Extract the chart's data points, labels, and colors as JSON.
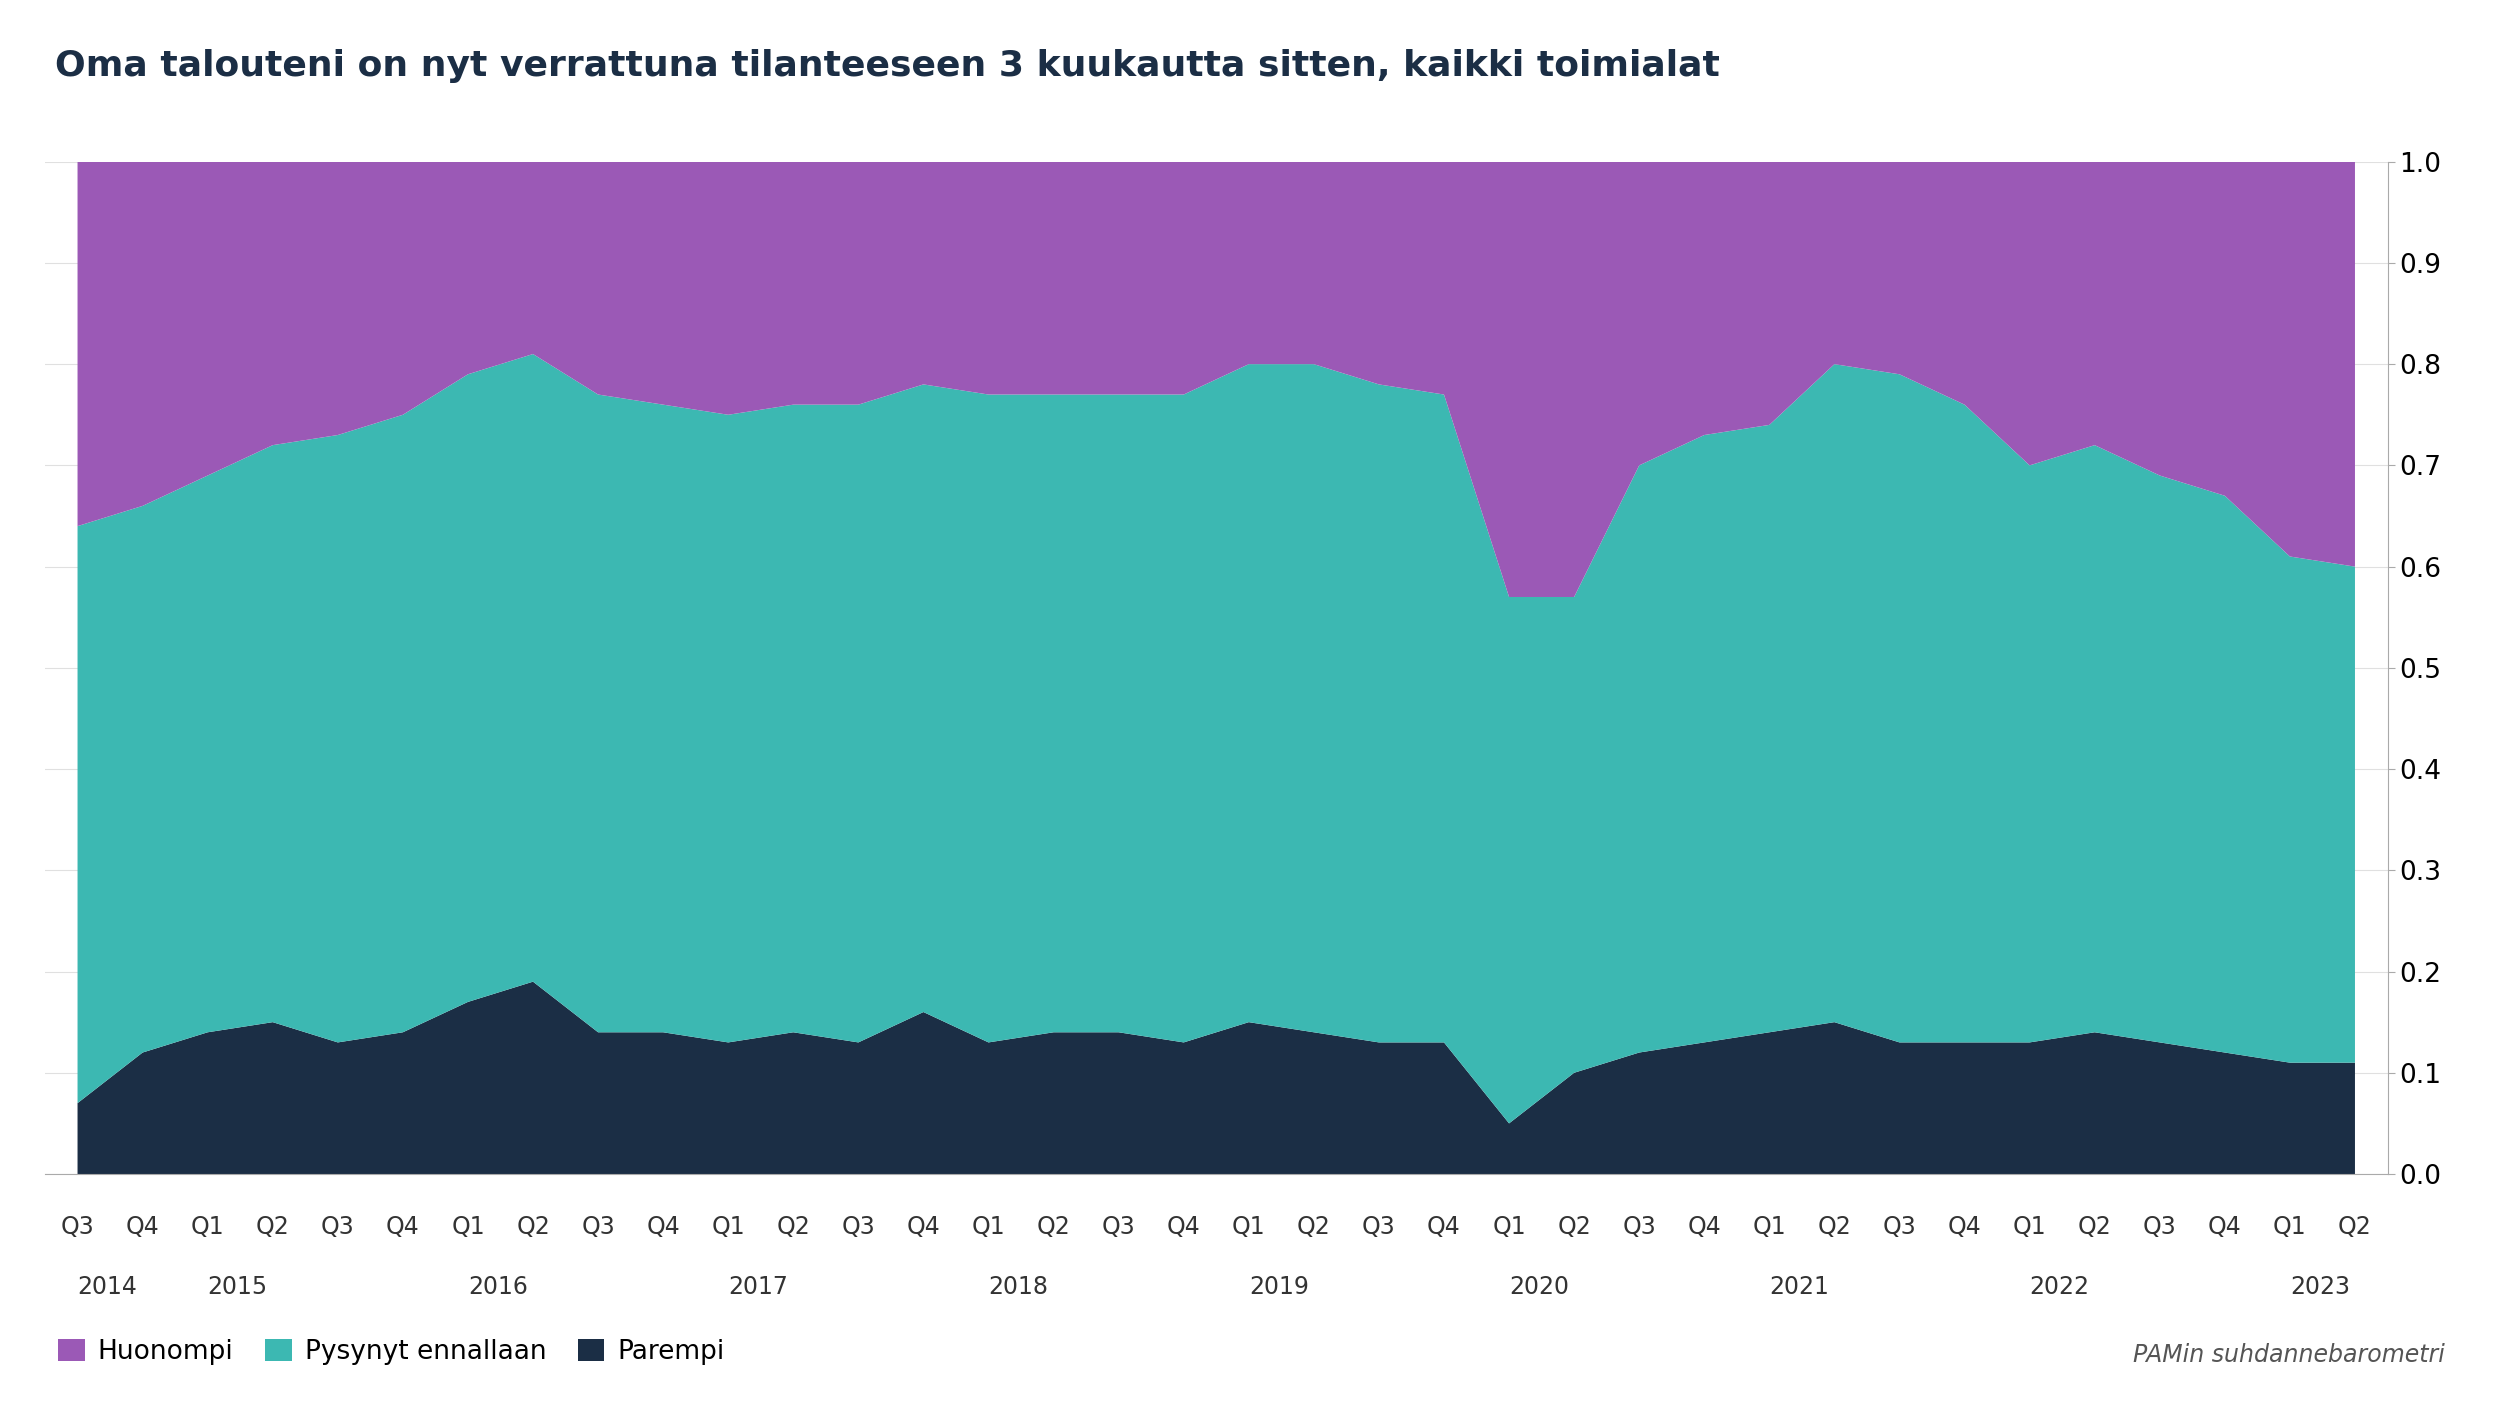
{
  "title": "Oma talouteni on nyt verrattuna tilanteeseen 3 kuukautta sitten, kaikki toimialat",
  "source": "PAMin suhdannebarometri",
  "colors": {
    "Huonompi": "#9b59b6",
    "Pysynyt ennallaan": "#3cb8b2",
    "Parempi": "#1b2e45"
  },
  "background_color": "#ffffff",
  "tick_labels": [
    "Q3",
    "Q4",
    "Q1",
    "Q2",
    "Q3",
    "Q4",
    "Q1",
    "Q2",
    "Q3",
    "Q4",
    "Q1",
    "Q2",
    "Q3",
    "Q4",
    "Q1",
    "Q2",
    "Q3",
    "Q4",
    "Q1",
    "Q2",
    "Q3",
    "Q4",
    "Q1",
    "Q2",
    "Q3",
    "Q4",
    "Q1",
    "Q2",
    "Q3",
    "Q4",
    "Q1",
    "Q2",
    "Q3",
    "Q4",
    "Q1",
    "Q2"
  ],
  "year_labels": [
    "2014",
    "2015",
    "2016",
    "2017",
    "2018",
    "2019",
    "2020",
    "2021",
    "2022",
    "2023"
  ],
  "year_positions": [
    0,
    2,
    6,
    10,
    14,
    18,
    22,
    26,
    30,
    34
  ],
  "parempi": [
    0.07,
    0.12,
    0.14,
    0.15,
    0.13,
    0.14,
    0.17,
    0.19,
    0.14,
    0.14,
    0.13,
    0.14,
    0.13,
    0.16,
    0.13,
    0.14,
    0.14,
    0.13,
    0.15,
    0.14,
    0.13,
    0.13,
    0.05,
    0.1,
    0.12,
    0.13,
    0.14,
    0.15,
    0.13,
    0.13,
    0.13,
    0.14,
    0.13,
    0.12,
    0.11,
    0.11
  ],
  "pysynyt": [
    0.57,
    0.54,
    0.55,
    0.57,
    0.6,
    0.61,
    0.62,
    0.62,
    0.63,
    0.62,
    0.62,
    0.62,
    0.63,
    0.62,
    0.64,
    0.63,
    0.63,
    0.64,
    0.65,
    0.66,
    0.65,
    0.64,
    0.52,
    0.47,
    0.58,
    0.6,
    0.6,
    0.65,
    0.66,
    0.63,
    0.57,
    0.58,
    0.56,
    0.55,
    0.5,
    0.49
  ],
  "huonompi": [
    0.36,
    0.34,
    0.31,
    0.28,
    0.27,
    0.25,
    0.21,
    0.19,
    0.23,
    0.24,
    0.25,
    0.24,
    0.24,
    0.22,
    0.23,
    0.23,
    0.23,
    0.23,
    0.2,
    0.2,
    0.22,
    0.23,
    0.43,
    0.43,
    0.3,
    0.27,
    0.26,
    0.2,
    0.21,
    0.24,
    0.3,
    0.28,
    0.31,
    0.33,
    0.39,
    0.4
  ],
  "title_fontsize": 26,
  "tick_fontsize": 17,
  "year_fontsize": 17,
  "source_fontsize": 17,
  "legend_fontsize": 19,
  "ytick_fontsize": 19
}
